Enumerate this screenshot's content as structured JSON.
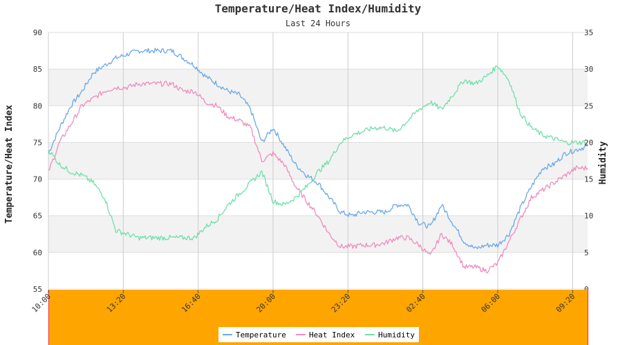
{
  "chart_data": {
    "type": "line",
    "title": "Temperature/Heat Index/Humidity",
    "subtitle": "Last 24 Hours",
    "ylabel_left": "Temperature/Heat Index",
    "ylabel_right": "Humidity",
    "ylim_left": [
      55,
      90
    ],
    "ylim_right": [
      0,
      35
    ],
    "yticks_left": [
      "55",
      "60",
      "65",
      "70",
      "75",
      "80",
      "85",
      "90"
    ],
    "yticks_right": [
      "0",
      "5",
      "10",
      "15",
      "20",
      "25",
      "30",
      "35"
    ],
    "xticks": [
      "10:00",
      "13:20",
      "16:40",
      "20:00",
      "23:20",
      "02:40",
      "06:00",
      "09:20"
    ],
    "grid": true,
    "legend_placement": "bottom-center",
    "colors": {
      "temperature": "#6aa8e6",
      "heat_index": "#ee8cc0",
      "humidity": "#6ee0a8",
      "band": "#f2f2f2",
      "axis_strip": "#ffa500",
      "axis_strip_edge": "#e83030"
    },
    "x_hours": [
      0,
      0.5,
      1,
      1.5,
      2,
      2.5,
      3,
      3.5,
      4,
      4.5,
      5,
      5.5,
      6,
      6.5,
      7,
      7.5,
      8,
      8.5,
      9,
      9.5,
      10,
      10.5,
      11,
      11.5,
      12,
      12.5,
      13,
      13.5,
      14,
      14.5,
      15,
      15.5,
      16,
      16.5,
      17,
      17.5,
      18,
      18.5,
      19,
      19.5,
      20,
      20.5,
      21,
      21.5,
      22,
      22.5,
      23,
      23.5,
      24
    ],
    "series": [
      {
        "name": "Temperature",
        "axis": "left",
        "values": [
          73.5,
          77,
          80,
          82,
          84.5,
          85.5,
          86.5,
          87,
          87.5,
          87.5,
          87.5,
          87.5,
          86.5,
          85.5,
          84,
          83,
          82,
          81.5,
          79.5,
          75,
          77,
          74.5,
          72,
          70.5,
          69.5,
          67.5,
          65.5,
          65,
          65.5,
          65.5,
          65.5,
          66.5,
          66.5,
          64,
          63.5,
          66.5,
          64,
          61.5,
          60.5,
          61,
          61,
          62.5,
          66,
          69,
          71.5,
          72,
          73.5,
          74,
          74.5
        ]
      },
      {
        "name": "Heat Index",
        "axis": "left",
        "values": [
          71,
          75,
          77.5,
          80,
          81,
          82,
          82.5,
          82.5,
          83,
          83,
          83,
          83,
          82,
          82,
          80.5,
          80,
          78.5,
          78,
          77,
          72.5,
          73.5,
          72,
          69,
          67,
          65,
          62.5,
          60.8,
          60.8,
          61,
          61,
          61.3,
          62,
          62,
          61,
          59.5,
          62.5,
          61,
          58,
          58,
          57.5,
          58.5,
          61.5,
          64.5,
          67.5,
          68.5,
          69.5,
          70.5,
          71.5,
          71.5
        ]
      },
      {
        "name": "Humidity",
        "axis": "right",
        "values": [
          19,
          17,
          16,
          15.5,
          14.5,
          12.5,
          8,
          7.5,
          7,
          7,
          7,
          7,
          7,
          7,
          8.5,
          9.5,
          11.5,
          13,
          14.5,
          16,
          12,
          11.5,
          12.5,
          14,
          16,
          17.5,
          20,
          21,
          21.5,
          22,
          22,
          21.5,
          23,
          24.5,
          25.5,
          24.5,
          26.5,
          28.5,
          28,
          29,
          30.5,
          28.5,
          24,
          22,
          21,
          20.5,
          20,
          20,
          20
        ]
      }
    ]
  }
}
